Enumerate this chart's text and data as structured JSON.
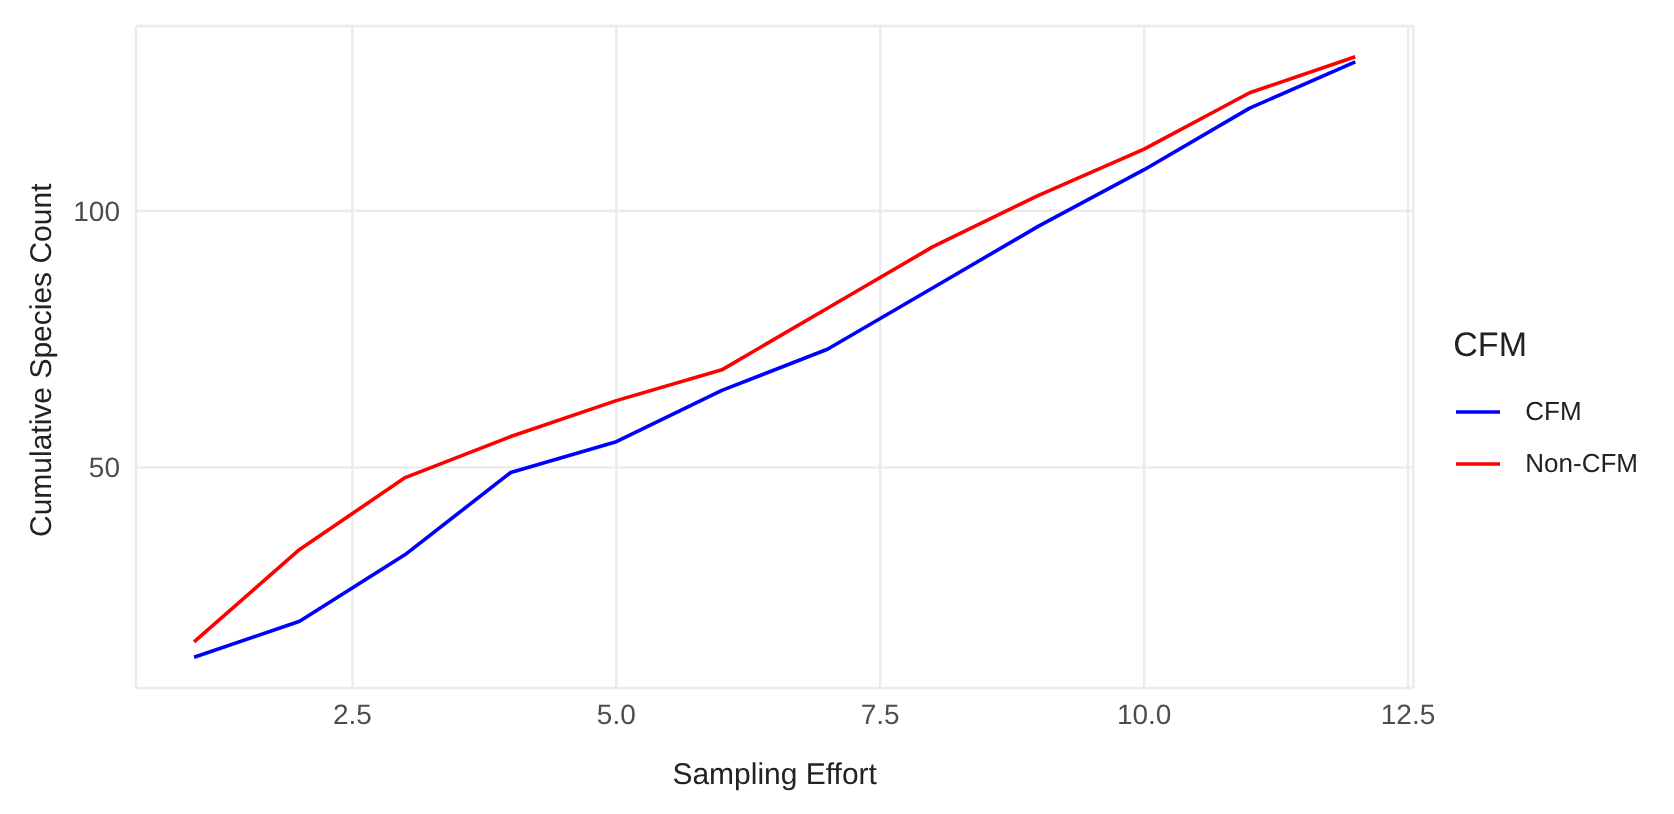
{
  "chart_data": {
    "type": "line",
    "xlabel": "Sampling Effort",
    "ylabel": "Cumulative Species Count",
    "legend_title": "CFM",
    "x": [
      1,
      2,
      3,
      4,
      5,
      6,
      7,
      8,
      9,
      10,
      11,
      12
    ],
    "series": [
      {
        "name": "CFM",
        "color": "#0000ff",
        "values": [
          13,
          20,
          33,
          49,
          55,
          65,
          73,
          85,
          97,
          108,
          120,
          129
        ]
      },
      {
        "name": "Non-CFM",
        "color": "#ff0000",
        "values": [
          16,
          34,
          48,
          56,
          63,
          69,
          81,
          93,
          103,
          112,
          123,
          130
        ]
      }
    ],
    "xlim": [
      0.45,
      12.55
    ],
    "ylim": [
      7,
      136
    ],
    "xticks": [
      2.5,
      {
        "value": 5,
        "label": "5.0"
      },
      7.5,
      {
        "value": 10,
        "label": "10.0"
      },
      12.5
    ],
    "yticks": [
      50,
      100
    ],
    "grid": true,
    "legend": "right",
    "marker": "none",
    "line_style": "solid"
  }
}
